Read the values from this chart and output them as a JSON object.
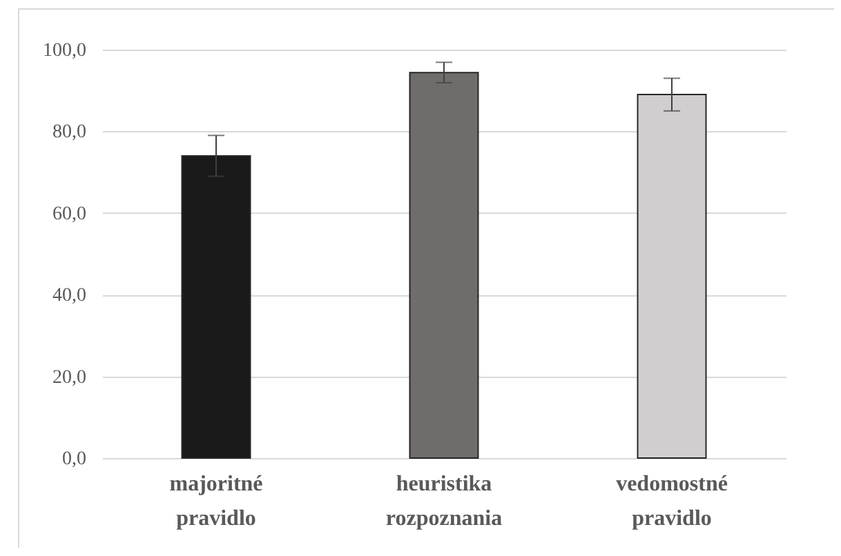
{
  "chart_data": {
    "type": "bar",
    "categories": [
      "majoritné pravidlo",
      "heuristika rozpoznania",
      "vedomostné pravidlo"
    ],
    "values": [
      74,
      94.4,
      89
    ],
    "colors": [
      "#1a1a1a",
      "#706c6b",
      "#d0cecf"
    ],
    "errors": [
      5,
      2.5,
      4
    ],
    "ylim": [
      0,
      100
    ],
    "yticks": [
      {
        "value": 0,
        "label": "0,0"
      },
      {
        "value": 20,
        "label": "20,0"
      },
      {
        "value": 40,
        "label": "40,0"
      },
      {
        "value": 60,
        "label": "60,0"
      },
      {
        "value": 80,
        "label": "80,0"
      },
      {
        "value": 100,
        "label": "100,0"
      }
    ],
    "grid": "y"
  }
}
